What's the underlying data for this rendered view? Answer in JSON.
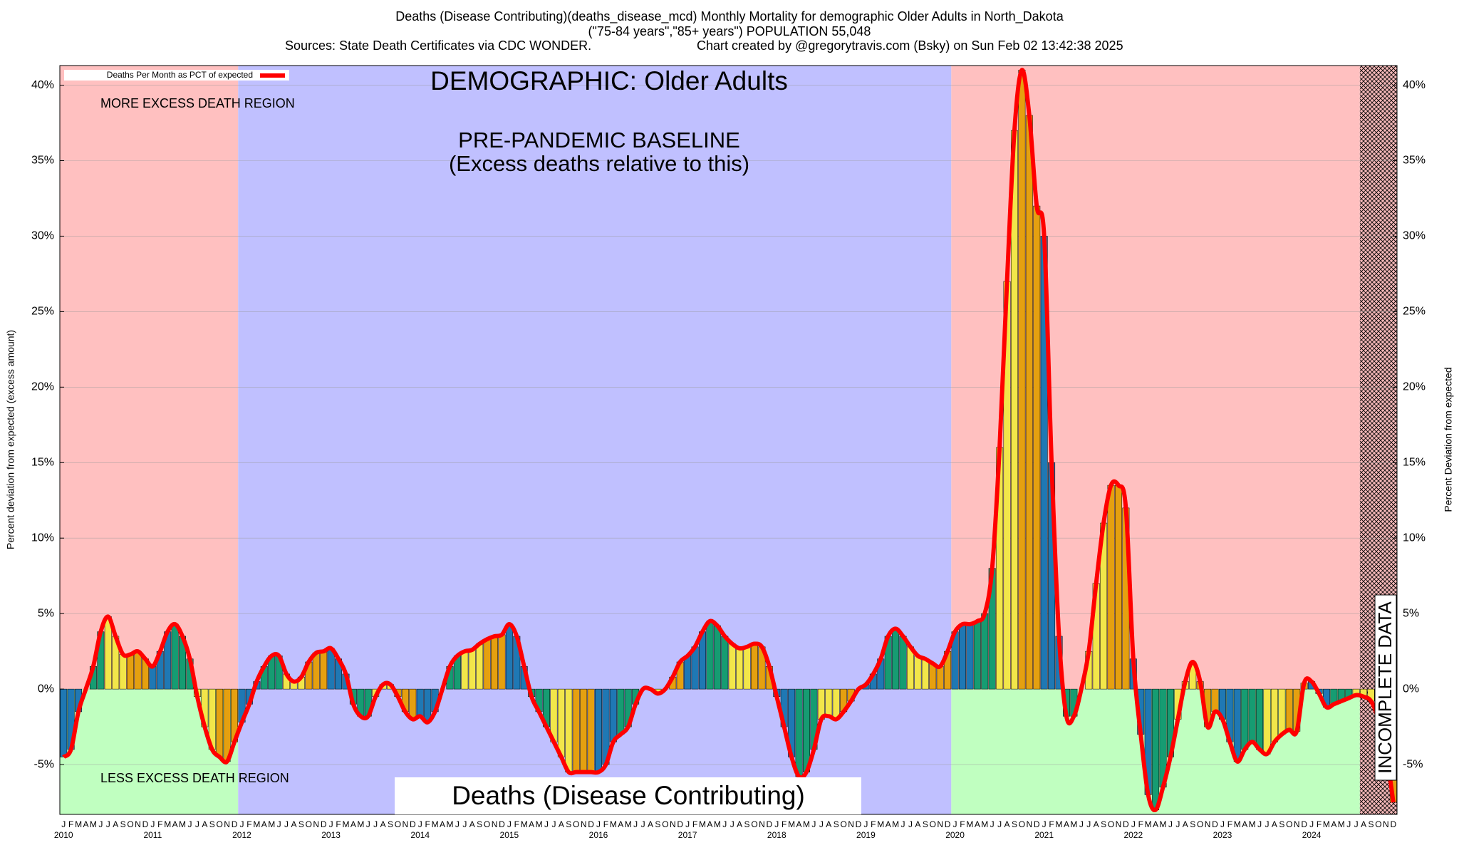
{
  "chart_data": {
    "type": "bar",
    "title": "Deaths (Disease Contributing)(deaths_disease_mcd) Monthly Mortality for demographic Older Adults in North_Dakota",
    "subtitle": "(\"75-84 years\",\"85+ years\") POPULATION 55,048",
    "sources": "Sources: State Death Certificates via CDC WONDER.",
    "credit": "Chart created by @gregorytravis.com (Bsky) on Sun Feb 02 13:42:38 2025",
    "y_label": "Percent deviation from expected (excess amount)",
    "y2_label": "Percent Deviation from expected",
    "legend_label": "Deaths Per Month as PCT of expected",
    "line_color": "#ff0000",
    "annotations": {
      "more": "MORE EXCESS DEATH REGION",
      "less": "LESS EXCESS DEATH REGION",
      "demographic": "DEMOGRAPHIC: Older Adults",
      "baseline": "PRE-PANDEMIC BASELINE",
      "baseline_note": "(Excess deaths relative to this)",
      "metric": "Deaths (Disease Contributing)",
      "incomplete": "INCOMPLETE DATA"
    },
    "month_labels": [
      "J",
      "F",
      "M",
      "A",
      "M",
      "J",
      "J",
      "A",
      "S",
      "O",
      "N",
      "D"
    ],
    "years": [
      2010,
      2011,
      2012,
      2013,
      2014,
      2015,
      2016,
      2017,
      2018,
      2019,
      2020,
      2021,
      2022,
      2023,
      2024
    ],
    "season_colors": [
      "#1f78b4",
      "#169c72",
      "#f2e64a",
      "#e5a010"
    ],
    "values": [
      -4.5,
      -4,
      -1.5,
      0,
      1.5,
      3.8,
      4.8,
      3.5,
      2.3,
      2.3,
      2.5,
      2.0,
      1.5,
      2.5,
      3.8,
      4.3,
      3.5,
      2.0,
      -0.5,
      -2.5,
      -4.0,
      -4.5,
      -4.8,
      -3.5,
      -2.2,
      -1.0,
      0.5,
      1.5,
      2.2,
      2.2,
      1.0,
      0.5,
      0.8,
      1.8,
      2.4,
      2.5,
      2.7,
      2.0,
      1.0,
      -1.0,
      -1.8,
      -1.8,
      -0.5,
      0.3,
      0.3,
      -0.5,
      -1.5,
      -2.0,
      -1.8,
      -2.2,
      -1.5,
      0,
      1.5,
      2.2,
      2.5,
      2.6,
      3.0,
      3.3,
      3.5,
      3.6,
      4.3,
      3.5,
      1.5,
      -0.5,
      -1.5,
      -2.5,
      -3.5,
      -4.5,
      -5.5,
      -5.5,
      -5.5,
      -5.5,
      -5.5,
      -5.0,
      -3.5,
      -3.0,
      -2.5,
      -1.0,
      0,
      0,
      -0.3,
      0,
      0.8,
      1.8,
      2.2,
      2.8,
      3.8,
      4.5,
      4.2,
      3.5,
      3.0,
      2.7,
      2.8,
      3.0,
      2.8,
      1.5,
      -0.5,
      -2.5,
      -4.5,
      -5.8,
      -5.5,
      -4.0,
      -2.0,
      -1.8,
      -2.0,
      -1.5,
      -0.8,
      0,
      0.3,
      1.0,
      2.0,
      3.5,
      4.0,
      3.5,
      2.8,
      2.2,
      2.0,
      1.7,
      1.5,
      2.5,
      3.8,
      4.3,
      4.3,
      4.5,
      5.0,
      8.0,
      16,
      27,
      37,
      41,
      38,
      32,
      30,
      15,
      3.5,
      -1.8,
      -1.8,
      0,
      2.5,
      7,
      11,
      13.5,
      13.5,
      12,
      2,
      -3,
      -7,
      -8,
      -6.5,
      -4.5,
      -2,
      0.5,
      1.8,
      0.5,
      -2.5,
      -1.5,
      -2,
      -3.5,
      -4.8,
      -4,
      -3.5,
      -4,
      -4.3,
      -3.5,
      -3,
      -2.7,
      -2.8,
      0.4,
      0.5,
      -0.3,
      -1.2,
      -1,
      -0.8,
      -0.6,
      -0.4,
      -0.5,
      -0.8,
      -2,
      -4,
      -7.5
    ],
    "ylim": [
      -8.3,
      41.3
    ],
    "yticks": [
      {
        "value": -5,
        "label": "-5%"
      },
      {
        "value": 0,
        "label": "0%"
      },
      {
        "value": 5,
        "label": "5%"
      },
      {
        "value": 10,
        "label": "10%"
      },
      {
        "value": 15,
        "label": "15%"
      },
      {
        "value": 20,
        "label": "20%"
      },
      {
        "value": 25,
        "label": "25%"
      },
      {
        "value": 30,
        "label": "30%"
      },
      {
        "value": 35,
        "label": "35%"
      },
      {
        "value": 40,
        "label": "40%"
      }
    ],
    "grid": true
  }
}
